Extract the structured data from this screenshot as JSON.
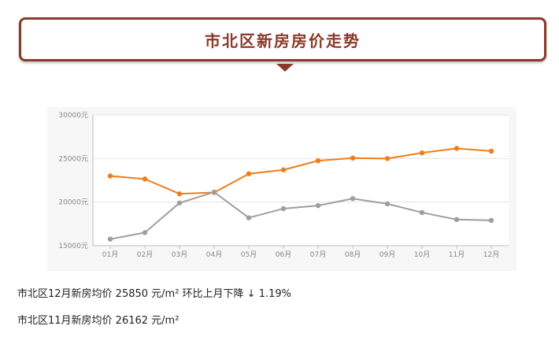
{
  "banner": {
    "title": "市北区新房房价走势"
  },
  "chart_data": {
    "type": "line",
    "categories": [
      "01月",
      "02月",
      "03月",
      "04月",
      "05月",
      "06月",
      "07月",
      "08月",
      "09月",
      "10月",
      "11月",
      "12月"
    ],
    "y_ticks": [
      15000,
      20000,
      25000,
      30000
    ],
    "y_tick_labels": [
      "15000元",
      "20000元",
      "25000元",
      "30000元"
    ],
    "ylim": [
      15000,
      30000
    ],
    "grid": true,
    "legend": "none",
    "series": [
      {
        "color": "#ef7d1b",
        "values": [
          23000,
          22650,
          20950,
          21100,
          23250,
          23700,
          24750,
          25050,
          25000,
          25650,
          26162,
          25850
        ]
      },
      {
        "color": "#9e9e9e",
        "values": [
          15750,
          16500,
          19900,
          21150,
          18200,
          19250,
          19600,
          20400,
          19800,
          18800,
          18000,
          17900
        ]
      }
    ]
  },
  "notes": [
    "市北区12月新房均价 25850 元/m² 环比上月下降 ↓ 1.19%",
    "市北区11月新房均价 26162 元/m²"
  ]
}
